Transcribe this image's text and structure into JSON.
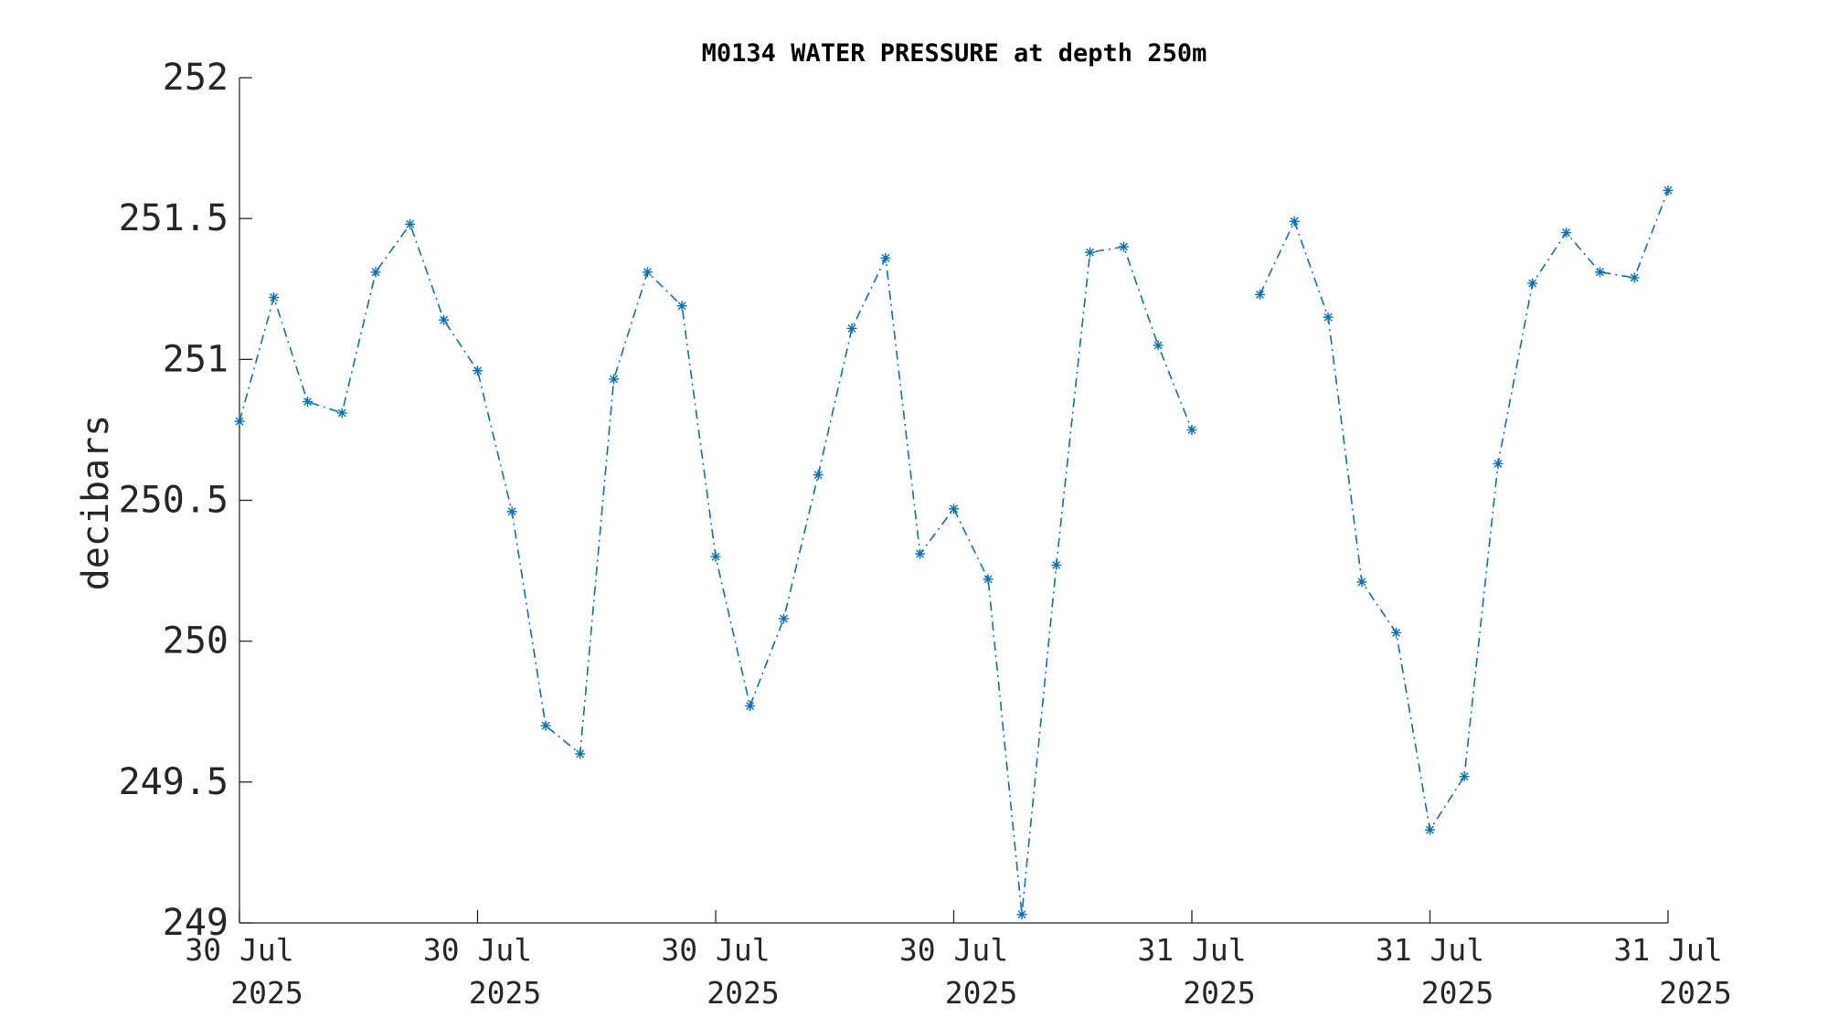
{
  "colors": {
    "series": "#0072BD",
    "axis": "#262626",
    "title": "#000000"
  },
  "chart_data": {
    "type": "line",
    "title": "M0134 WATER PRESSURE at depth 250m",
    "xlabel": "",
    "ylabel": "decibars",
    "ylim": [
      249,
      252
    ],
    "xlim": [
      "2025-07-30 00:00",
      "2025-07-31 12:00"
    ],
    "yticks": [
      "249",
      "249.5",
      "250",
      "250.5",
      "251",
      "251.5",
      "252"
    ],
    "xtick_labels": [
      {
        "line1": "30 Jul",
        "line2": "2025"
      },
      {
        "line1": "30 Jul",
        "line2": "2025"
      },
      {
        "line1": "30 Jul",
        "line2": "2025"
      },
      {
        "line1": "30 Jul",
        "line2": "2025"
      },
      {
        "line1": "31 Jul",
        "line2": "2025"
      },
      {
        "line1": "31 Jul",
        "line2": "2025"
      },
      {
        "line1": "31 Jul",
        "line2": "2025"
      }
    ],
    "line_style": "dash-dot",
    "marker": "asterisk",
    "grid": false,
    "series": [
      {
        "x": [
          "2025-07-30 00:00",
          "2025-07-30 00:52",
          "2025-07-30 01:43",
          "2025-07-30 02:35",
          "2025-07-30 03:26",
          "2025-07-30 04:18",
          "2025-07-30 05:09",
          "2025-07-30 06:00",
          "2025-07-30 06:52",
          "2025-07-30 07:43",
          "2025-07-30 08:35",
          "2025-07-30 09:26",
          "2025-07-30 10:17",
          "2025-07-30 11:09",
          "2025-07-30 12:00",
          "2025-07-30 12:52",
          "2025-07-30 13:43",
          "2025-07-30 14:35",
          "2025-07-30 15:26",
          "2025-07-30 16:17",
          "2025-07-30 17:09",
          "2025-07-30 18:00",
          "2025-07-30 18:52",
          "2025-07-30 19:43",
          "2025-07-30 20:35",
          "2025-07-30 21:26",
          "2025-07-30 22:17",
          "2025-07-30 23:09",
          "2025-07-31 00:00",
          null,
          "2025-07-31 01:43",
          "2025-07-31 02:35",
          "2025-07-31 03:26",
          "2025-07-31 04:17",
          "2025-07-31 05:09",
          "2025-07-31 06:00",
          "2025-07-31 06:52",
          "2025-07-31 07:43",
          "2025-07-31 08:35",
          "2025-07-31 09:26",
          "2025-07-31 10:17",
          "2025-07-31 11:09",
          "2025-07-31 12:00"
        ],
        "y": [
          250.78,
          251.22,
          250.85,
          250.81,
          251.31,
          251.48,
          251.14,
          250.96,
          250.46,
          249.7,
          249.6,
          250.93,
          251.31,
          251.19,
          250.3,
          249.77,
          250.08,
          250.59,
          251.11,
          251.36,
          250.31,
          250.47,
          250.22,
          249.03,
          250.27,
          251.38,
          251.4,
          251.05,
          250.75,
          null,
          251.23,
          251.49,
          251.15,
          250.21,
          250.03,
          249.33,
          249.52,
          250.63,
          251.27,
          251.45,
          251.31,
          251.29,
          251.6
        ]
      }
    ]
  }
}
